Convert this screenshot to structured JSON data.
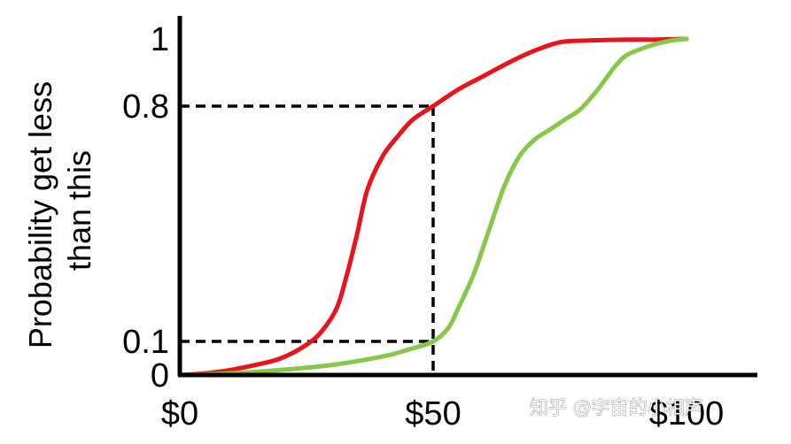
{
  "chart_data": {
    "type": "line",
    "title": "",
    "xlabel": "",
    "ylabel": "Probability get less than this",
    "ylabel_lines": [
      "Probability get less",
      "than this"
    ],
    "xlim": [
      0,
      100
    ],
    "ylim": [
      0,
      1
    ],
    "x_ticks": [
      {
        "value": 0,
        "label": "$0"
      },
      {
        "value": 50,
        "label": "$50"
      },
      {
        "value": 100,
        "label": "$100"
      }
    ],
    "y_ticks": [
      {
        "value": 0,
        "label": "0"
      },
      {
        "value": 0.1,
        "label": "0.1"
      },
      {
        "value": 0.8,
        "label": "0.8"
      },
      {
        "value": 1,
        "label": "1"
      }
    ],
    "reference_lines": [
      {
        "x": 50,
        "y": 0.8
      },
      {
        "x": 50,
        "y": 0.1
      }
    ],
    "grid": false,
    "legend": "none",
    "series": [
      {
        "color": "#e8131b",
        "x": [
          0,
          5,
          10,
          15,
          20,
          25,
          28,
          31,
          33,
          35,
          37,
          40,
          43,
          46,
          50,
          55,
          60,
          65,
          70,
          75,
          80,
          85,
          90,
          94,
          100
        ],
        "y": [
          0,
          0.005,
          0.015,
          0.03,
          0.05,
          0.09,
          0.13,
          0.2,
          0.3,
          0.42,
          0.55,
          0.65,
          0.71,
          0.76,
          0.8,
          0.85,
          0.89,
          0.93,
          0.965,
          0.99,
          0.995,
          0.997,
          0.998,
          0.998,
          1
        ]
      },
      {
        "color": "#86c94a",
        "x": [
          0,
          10,
          20,
          30,
          40,
          45,
          50,
          53,
          55,
          58,
          61,
          64,
          67,
          70,
          73,
          76,
          79,
          82,
          84,
          86,
          88,
          91,
          94,
          97,
          100
        ],
        "y": [
          0,
          0.005,
          0.015,
          0.03,
          0.055,
          0.075,
          0.1,
          0.14,
          0.2,
          0.3,
          0.43,
          0.56,
          0.65,
          0.7,
          0.73,
          0.76,
          0.79,
          0.84,
          0.88,
          0.92,
          0.95,
          0.97,
          0.985,
          0.995,
          1
        ]
      }
    ]
  },
  "watermark": "知乎 @宇宙的小相声",
  "colors": {
    "axis": "#000000",
    "dashed": "#000000"
  }
}
